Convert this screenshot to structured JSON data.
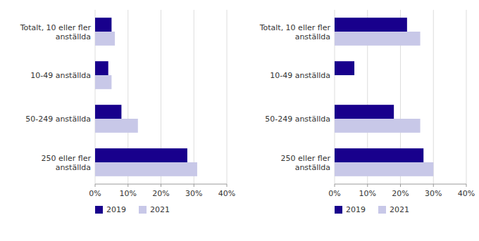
{
  "chart_data": [
    {
      "type": "bar",
      "orientation": "horizontal",
      "categories": [
        "Totalt, 10 eller fler\nanställda",
        "10-49 anställda",
        "50-249 anställda",
        "250 eller fler\nanställda"
      ],
      "series": [
        {
          "name": "2019",
          "color": "#18008c",
          "values": [
            5,
            4,
            8,
            28
          ]
        },
        {
          "name": "2021",
          "color": "#c8c8e8",
          "values": [
            6,
            5,
            13,
            31
          ]
        }
      ],
      "xlim": [
        0,
        40
      ],
      "xticks": [
        {
          "value": 0,
          "label": "0%"
        },
        {
          "value": 10,
          "label": "10%"
        },
        {
          "value": 20,
          "label": "20%"
        },
        {
          "value": 30,
          "label": "30%"
        },
        {
          "value": 40,
          "label": "40%"
        }
      ],
      "grid": true,
      "legend": "bottom"
    },
    {
      "type": "bar",
      "orientation": "horizontal",
      "categories": [
        "Totalt, 10 eller fler\nanställda",
        "10-49 anställda",
        "50-249 anställda",
        "250 eller fler\nanställda"
      ],
      "series": [
        {
          "name": "2019",
          "color": "#18008c",
          "values": [
            22,
            6,
            18,
            27
          ]
        },
        {
          "name": "2021",
          "color": "#c8c8e8",
          "values": [
            26,
            0,
            26,
            30
          ]
        }
      ],
      "xlim": [
        0,
        40
      ],
      "xticks": [
        {
          "value": 0,
          "label": "0%"
        },
        {
          "value": 10,
          "label": "10%"
        },
        {
          "value": 20,
          "label": "20%"
        },
        {
          "value": 30,
          "label": "30%"
        },
        {
          "value": 40,
          "label": "40%"
        }
      ],
      "grid": true,
      "legend": "bottom"
    }
  ]
}
